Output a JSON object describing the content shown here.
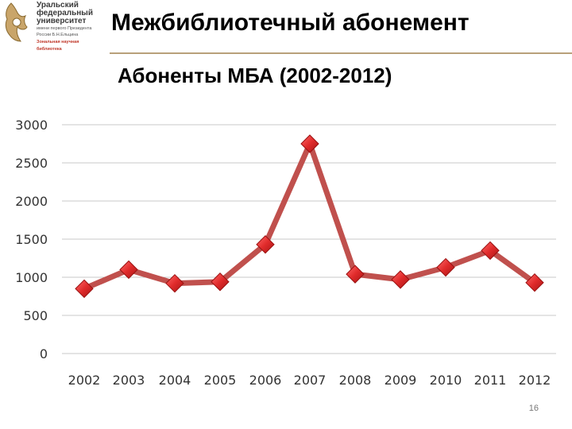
{
  "logo": {
    "name_lines": [
      "Уральский",
      "федеральный",
      "университет"
    ],
    "subtitle_lines": [
      "имени первого Президента",
      "России Б.Н.Ельцина"
    ],
    "library_lines": [
      "Зональная научная",
      "библиотека"
    ]
  },
  "slide": {
    "title": "Межбиблиотечный абонемент",
    "number": "16"
  },
  "colors": {
    "line": "#c0504d",
    "marker": "#e02b2b",
    "title_rule": "#b8a07a",
    "grid": "#c8c8c8"
  },
  "chart_data": {
    "type": "line",
    "title": "Абоненты МБА (2002-2012)",
    "categories": [
      "2002",
      "2003",
      "2004",
      "2005",
      "2006",
      "2007",
      "2008",
      "2009",
      "2010",
      "2011",
      "2012"
    ],
    "series": [
      {
        "values": [
          850,
          1100,
          920,
          940,
          1430,
          2750,
          1040,
          970,
          1130,
          1350,
          930
        ]
      }
    ],
    "yticks": [
      "0",
      "500",
      "1000",
      "1500",
      "2000",
      "2500",
      "3000"
    ],
    "ylim": [
      0,
      3000
    ],
    "grid": true,
    "legend": "none"
  }
}
